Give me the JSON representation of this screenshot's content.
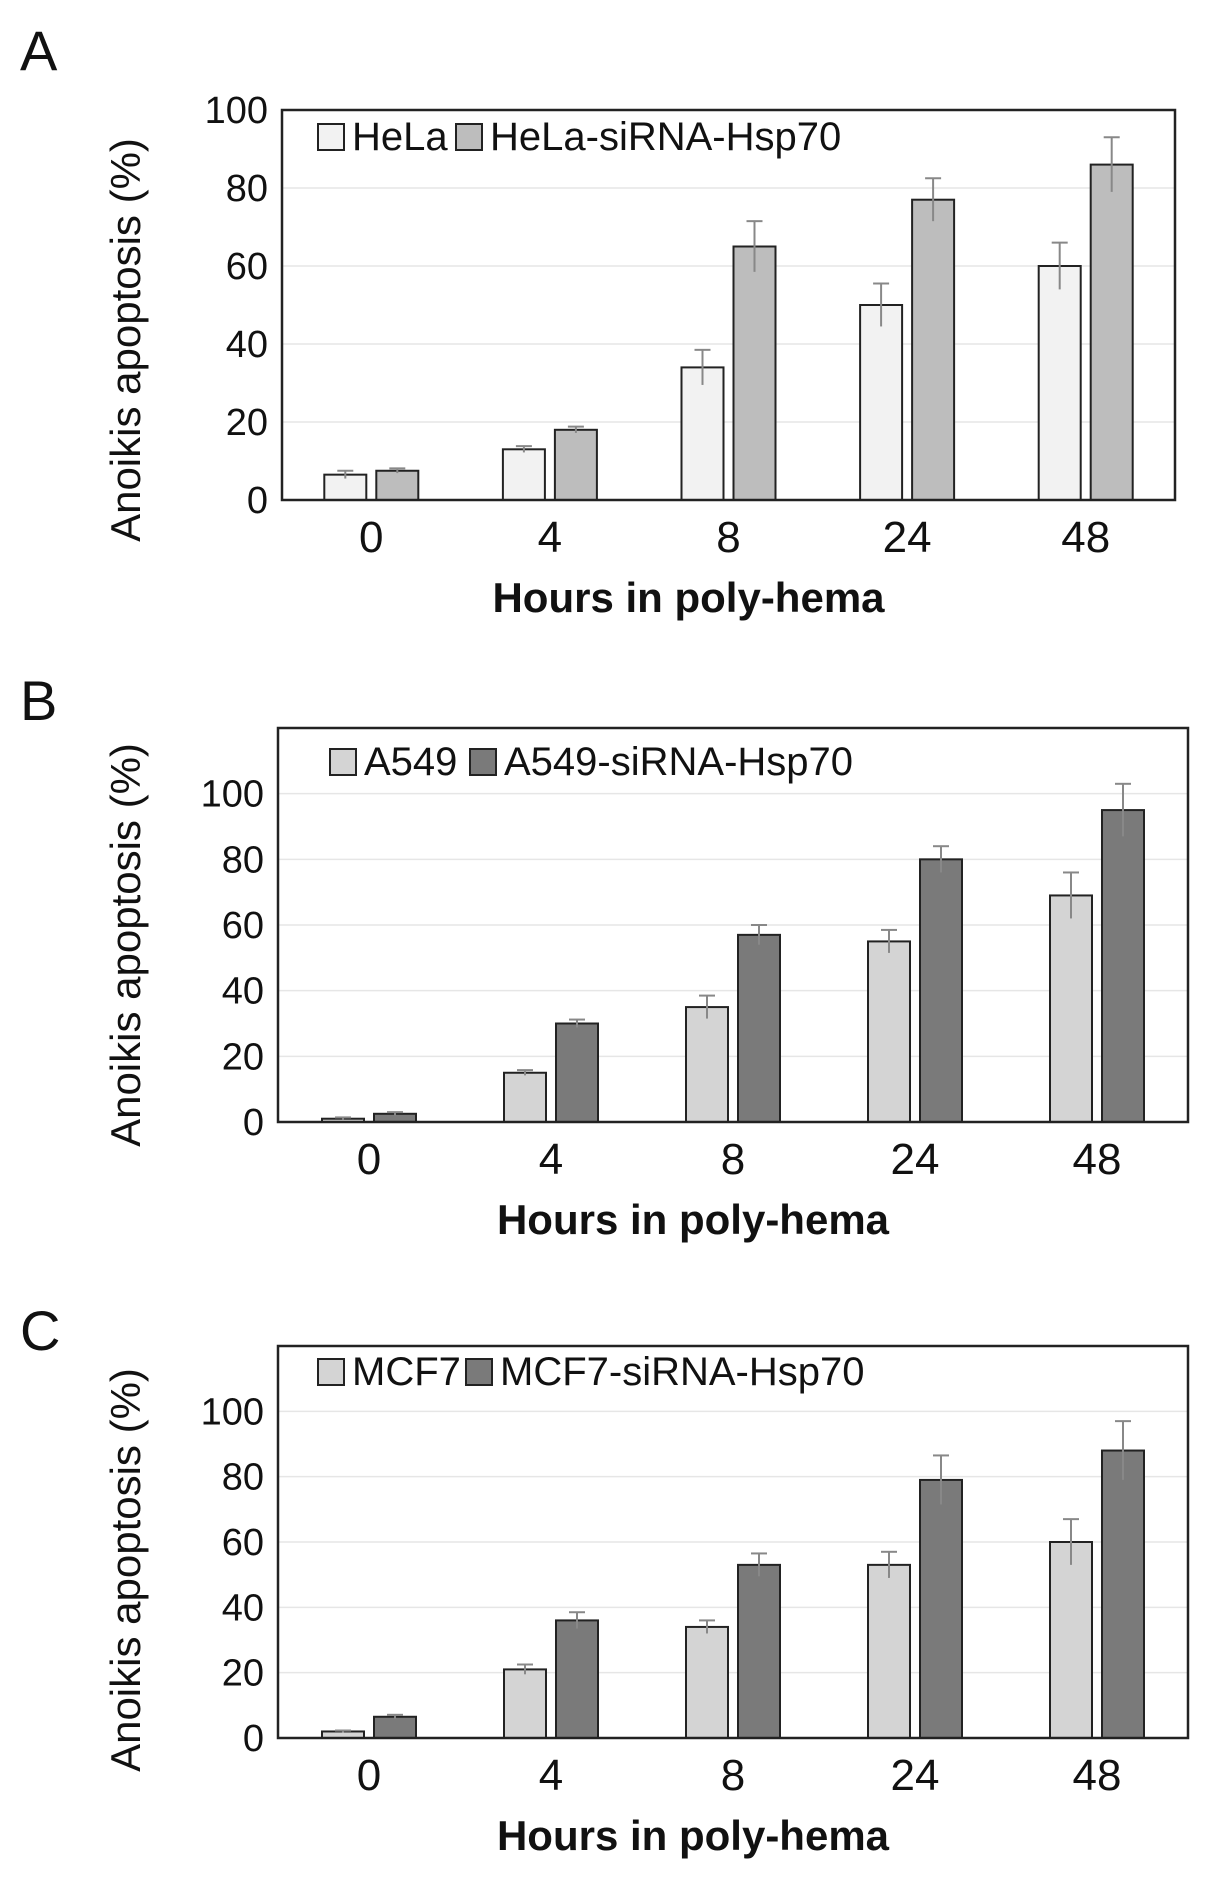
{
  "chart_data": [
    {
      "panel": "A",
      "type": "bar",
      "categories": [
        "0",
        "4",
        "8",
        "24",
        "48"
      ],
      "xlabel": "Hours in poly-hema",
      "ylabel": "Anoikis apoptosis  (%)",
      "ylim": [
        0,
        100
      ],
      "yticks": [
        "0",
        "20",
        "40",
        "60",
        "80",
        "100"
      ],
      "grid": true,
      "legend_position": "top-left",
      "series": [
        {
          "name": "HeLa",
          "color": "#f2f2f2",
          "values": [
            6.5,
            13,
            34,
            50,
            60
          ],
          "errors": [
            1,
            0.8,
            4.5,
            5.5,
            6
          ]
        },
        {
          "name": "HeLa-siRNA-Hsp70",
          "color": "#bdbdbd",
          "values": [
            7.5,
            18,
            65,
            77,
            86
          ],
          "errors": [
            0.6,
            0.8,
            6.5,
            5.5,
            7
          ]
        }
      ]
    },
    {
      "panel": "B",
      "type": "bar",
      "categories": [
        "0",
        "4",
        "8",
        "24",
        "48"
      ],
      "xlabel": "Hours in poly-hema",
      "ylabel": "Anoikis apoptosis  (%)",
      "ylim": [
        0,
        120
      ],
      "yticks": [
        "0",
        "20",
        "40",
        "60",
        "80",
        "100"
      ],
      "grid": true,
      "legend_position": "top-left",
      "series": [
        {
          "name": "A549",
          "color": "#d4d4d4",
          "values": [
            1,
            15,
            35,
            55,
            69
          ],
          "errors": [
            0.4,
            0.8,
            3.5,
            3.5,
            7
          ]
        },
        {
          "name": "A549-siRNA-Hsp70",
          "color": "#7a7a7a",
          "values": [
            2.5,
            30,
            57,
            80,
            95
          ],
          "errors": [
            0.5,
            1.2,
            3,
            4,
            8
          ]
        }
      ]
    },
    {
      "panel": "C",
      "type": "bar",
      "categories": [
        "0",
        "4",
        "8",
        "24",
        "48"
      ],
      "xlabel": "Hours in poly-hema",
      "ylabel": "Anoikis apoptosis  (%)",
      "ylim": [
        0,
        120
      ],
      "yticks": [
        "0",
        "20",
        "40",
        "60",
        "80",
        "100"
      ],
      "grid": true,
      "legend_position": "top-left",
      "series": [
        {
          "name": "MCF7",
          "color": "#d4d4d4",
          "values": [
            2,
            21,
            34,
            53,
            60
          ],
          "errors": [
            0.3,
            1.5,
            2,
            4,
            7
          ]
        },
        {
          "name": "MCF7-siRNA-Hsp70",
          "color": "#7a7a7a",
          "values": [
            6.5,
            36,
            53,
            79,
            88
          ],
          "errors": [
            0.6,
            2.5,
            3.5,
            7.5,
            9
          ]
        }
      ]
    }
  ]
}
